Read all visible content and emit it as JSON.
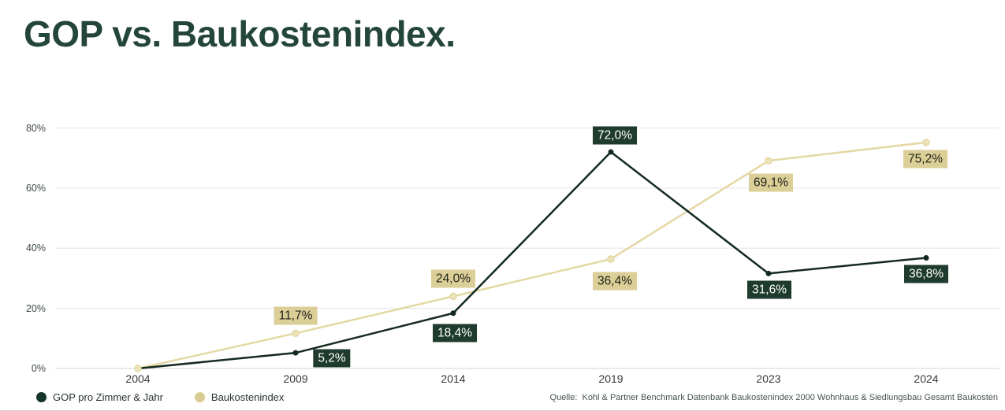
{
  "title": "GOP vs. Baukostenindex.",
  "source": "Quelle:  Kohl & Partner Benchmark Datenbank Baukostenindex 2000 Wohnhaus & Siedlungsbau Gesamt Baukosten",
  "colors": {
    "title": "#24463a",
    "gop_line": "#142a20",
    "gop_badge_bg": "#1f3b2e",
    "gop_badge_text": "#ffffff",
    "baukosten_line": "#e4d8a4",
    "baukosten_marker_fill": "#ece3bb",
    "baukosten_badge_bg": "#dbce96",
    "baukosten_badge_text": "#20241c",
    "gridline": "#e5e5e5",
    "zero_line": "#d6d6d6"
  },
  "chart_data": {
    "type": "line",
    "title": "GOP vs. Baukostenindex.",
    "categories": [
      "2004",
      "2009",
      "2014",
      "2019",
      "2023",
      "2024"
    ],
    "series": [
      {
        "name": "GOP pro Zimmer & Jahr",
        "color": "#142a20",
        "marker_color": "#142a20",
        "label_bg": "#1f3b2e",
        "label_color": "#ffffff",
        "values": [
          0,
          5.2,
          18.4,
          72.0,
          31.6,
          36.8
        ],
        "labels": [
          "",
          "5,2%",
          "18,4%",
          "72,0%",
          "31,6%",
          "36,8%"
        ],
        "label_offsets": [
          null,
          [
            46,
            7
          ],
          [
            2,
            25
          ],
          [
            5,
            -21
          ],
          [
            1,
            21
          ],
          [
            0,
            21
          ]
        ]
      },
      {
        "name": "Baukostenindex",
        "color": "#e4d8a4",
        "marker_color": "#ece3bb",
        "label_bg": "#dbce96",
        "label_color": "#20241c",
        "values": [
          0,
          11.7,
          24.0,
          36.4,
          69.1,
          75.2
        ],
        "labels": [
          "",
          "11,7%",
          "24,0%",
          "36,4%",
          "69,1%",
          "75,2%"
        ],
        "label_offsets": [
          null,
          [
            0,
            -22
          ],
          [
            0,
            -22
          ],
          [
            5,
            28
          ],
          [
            3,
            28
          ],
          [
            -1,
            21
          ]
        ]
      }
    ],
    "xlabel": "",
    "ylabel": "",
    "ylim": [
      0,
      80
    ],
    "yticks": [
      0,
      20,
      40,
      60,
      80
    ],
    "ytick_labels": [
      "0%",
      "20%",
      "40%",
      "60%",
      "80%"
    ],
    "grid": "horizontal",
    "legend_position": "bottom-left",
    "value_format": "german-percent"
  }
}
